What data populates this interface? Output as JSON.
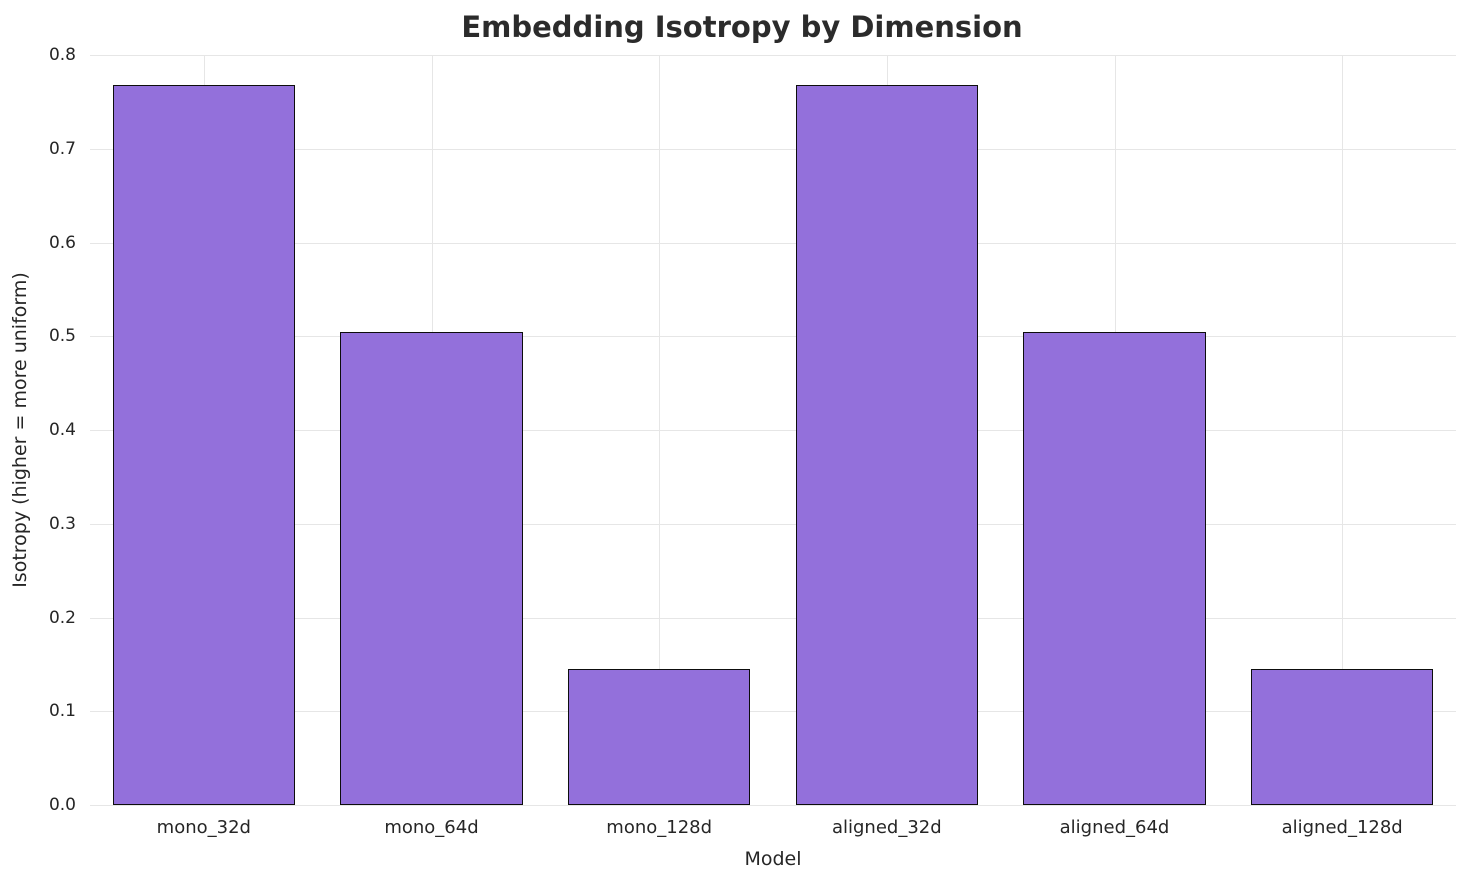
{
  "chart_data": {
    "type": "bar",
    "title": "Embedding Isotropy by Dimension",
    "xlabel": "Model",
    "ylabel": "Isotropy (higher = more uniform)",
    "categories": [
      "mono_32d",
      "mono_64d",
      "mono_128d",
      "aligned_32d",
      "aligned_64d",
      "aligned_128d"
    ],
    "values": [
      0.768,
      0.505,
      0.145,
      0.768,
      0.505,
      0.145
    ],
    "ylim": [
      0.0,
      0.8
    ],
    "yticks": [
      0.0,
      0.1,
      0.2,
      0.3,
      0.4,
      0.5,
      0.6,
      0.7,
      0.8
    ],
    "grid": true,
    "legend": null,
    "bar_color": "#9370DB",
    "bar_edge_color": "#0d0d0d",
    "grid_color": "#e6e6e6",
    "background_color": "#ffffff"
  }
}
